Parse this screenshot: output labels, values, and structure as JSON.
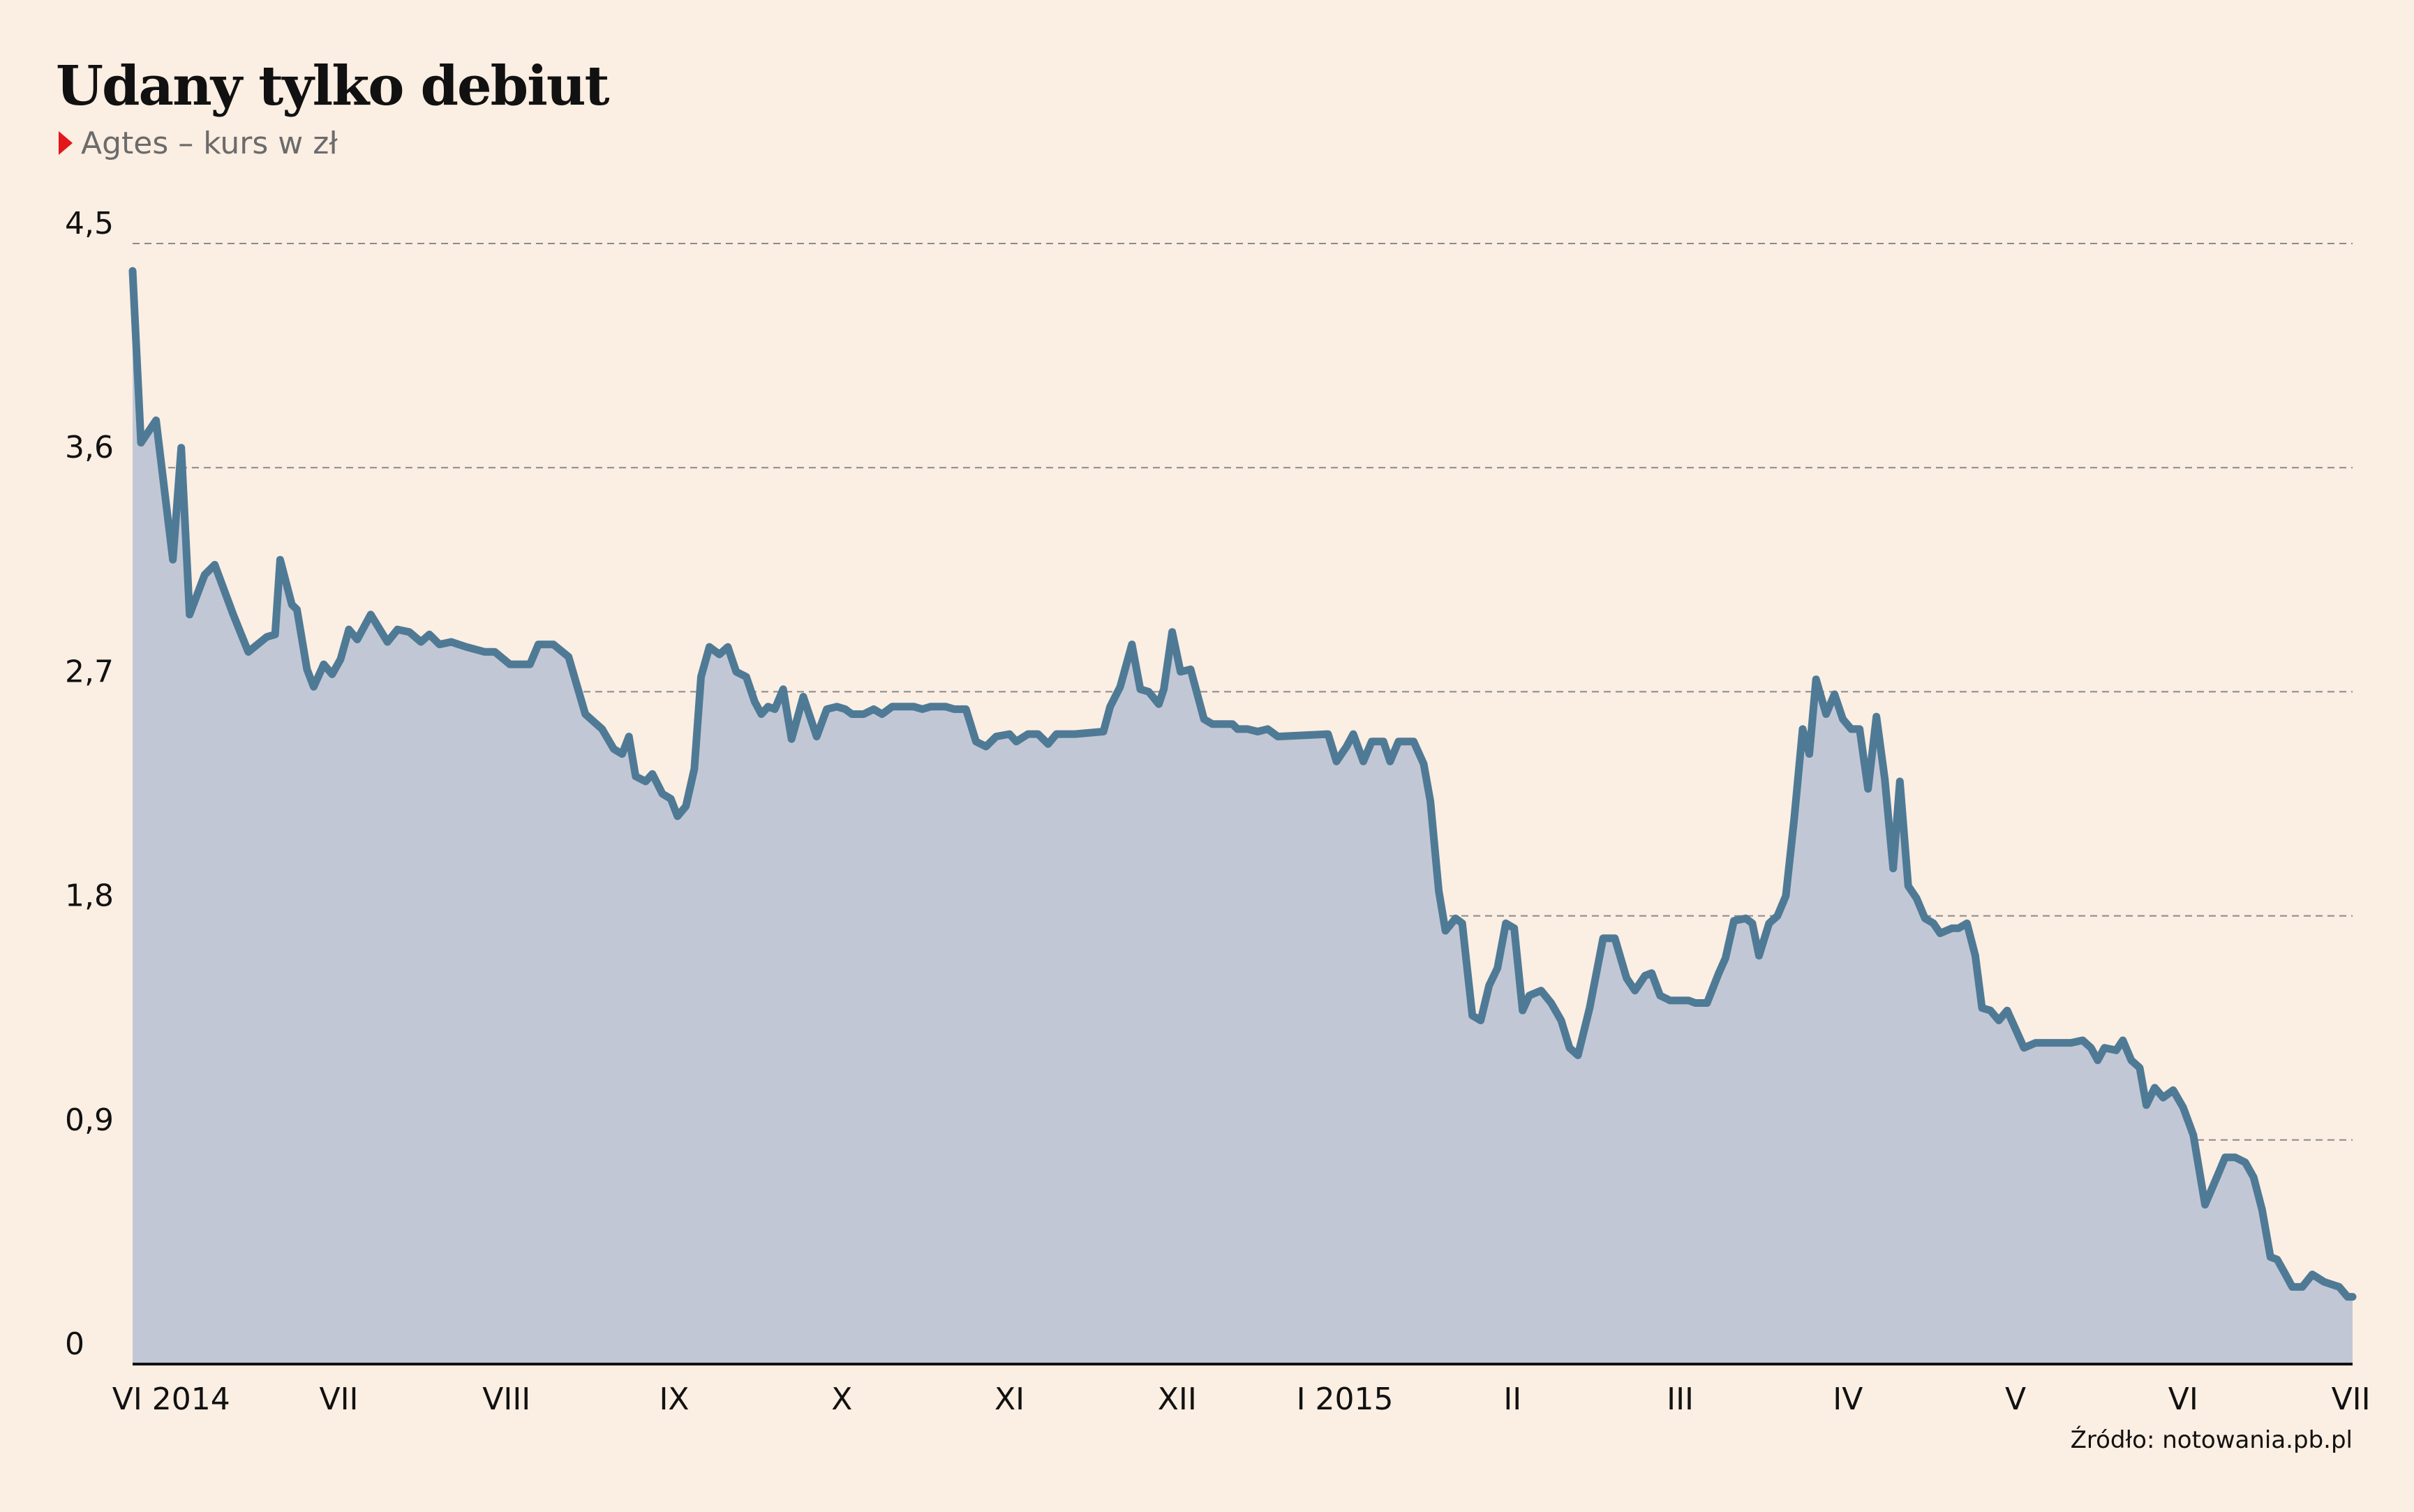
{
  "chart_data": {
    "type": "area",
    "title": "Udany tylko debiut",
    "source": "Źródło: notowania.pb.pl",
    "xlim": [
      -0.23,
      13.01
    ],
    "xticks": [
      {
        "value": 0,
        "label": "VI 2014"
      },
      {
        "value": 1,
        "label": "VII"
      },
      {
        "value": 2,
        "label": "VIII"
      },
      {
        "value": 3,
        "label": "IX"
      },
      {
        "value": 4,
        "label": "X"
      },
      {
        "value": 5,
        "label": "XI"
      },
      {
        "value": 6,
        "label": "XII"
      },
      {
        "value": 7,
        "label": "I 2015"
      },
      {
        "value": 8,
        "label": "II"
      },
      {
        "value": 9,
        "label": "III"
      },
      {
        "value": 10,
        "label": "IV"
      },
      {
        "value": 11,
        "label": "V"
      },
      {
        "value": 12,
        "label": "VI"
      },
      {
        "value": 13,
        "label": "VII"
      }
    ],
    "ylim": [
      0,
      4.5
    ],
    "yticks": [
      0,
      {
        "value": 0.9,
        "label": "0,9"
      },
      {
        "value": 1.8,
        "label": "1,8"
      },
      {
        "value": 2.7,
        "label": "2,7"
      },
      {
        "value": 3.6,
        "label": "3,6"
      },
      {
        "value": 4.5,
        "label": "4,5"
      }
    ],
    "grid": true,
    "legend_marker_color": "#e3161b",
    "area_color": "#c2c7d6",
    "x": [
      -0.23,
      -0.18,
      -0.09,
      0.01,
      0.06,
      0.11,
      0.2,
      0.26,
      0.37,
      0.46,
      0.57,
      0.62,
      0.65,
      0.72,
      0.75,
      0.81,
      0.85,
      0.91,
      0.96,
      1.01,
      1.06,
      1.11,
      1.19,
      1.29,
      1.35,
      1.42,
      1.49,
      1.54,
      1.6,
      1.67,
      1.76,
      1.87,
      1.93,
      2.02,
      2.14,
      2.19,
      2.28,
      2.37,
      2.47,
      2.57,
      2.64,
      2.69,
      2.73,
      2.77,
      2.83,
      2.87,
      2.93,
      2.98,
      3.02,
      3.07,
      3.12,
      3.16,
      3.21,
      3.27,
      3.32,
      3.37,
      3.43,
      3.48,
      3.52,
      3.56,
      3.6,
      3.65,
      3.7,
      3.77,
      3.85,
      3.91,
      3.97,
      4.02,
      4.06,
      4.13,
      4.19,
      4.24,
      4.3,
      4.43,
      4.48,
      4.53,
      4.62,
      4.67,
      4.74,
      4.8,
      4.86,
      4.92,
      5.0,
      5.04,
      5.11,
      5.17,
      5.23,
      5.28,
      5.39,
      5.56,
      5.6,
      5.66,
      5.73,
      5.78,
      5.83,
      5.89,
      5.92,
      5.97,
      6.02,
      6.08,
      6.16,
      6.21,
      6.33,
      6.36,
      6.42,
      6.48,
      6.54,
      6.6,
      6.9,
      6.95,
      7.01,
      7.05,
      7.11,
      7.16,
      7.23,
      7.27,
      7.32,
      7.41,
      7.47,
      7.51,
      7.56,
      7.6,
      7.66,
      7.7,
      7.76,
      7.81,
      7.86,
      7.91,
      7.96,
      8.01,
      8.06,
      8.1,
      8.17,
      8.23,
      8.29,
      8.34,
      8.39,
      8.46,
      8.54,
      8.61,
      8.68,
      8.73,
      8.79,
      8.83,
      8.88,
      8.94,
      9.05,
      9.09,
      9.16,
      9.23,
      9.27,
      9.32,
      9.39,
      9.43,
      9.47,
      9.53,
      9.58,
      9.63,
      9.68,
      9.73,
      9.77,
      9.81,
      9.87,
      9.92,
      9.97,
      10.02,
      10.07,
      10.12,
      10.17,
      10.22,
      10.27,
      10.31,
      10.36,
      10.41,
      10.46,
      10.51,
      10.55,
      10.62,
      10.66,
      10.71,
      10.76,
      10.8,
      10.85,
      10.9,
      10.95,
      11.01,
      11.05,
      11.12,
      11.33,
      11.4,
      11.45,
      11.49,
      11.53,
      11.6,
      11.64,
      11.69,
      11.74,
      11.78,
      11.83,
      11.88,
      11.94,
      12.0,
      12.06,
      12.13,
      12.2,
      12.25,
      12.31,
      12.37,
      12.42,
      12.47,
      12.52,
      12.56,
      12.61,
      12.65,
      12.71,
      12.77,
      12.84,
      12.93,
      12.98,
      13.01
    ],
    "series": [
      {
        "name": "Agtes – kurs w zł",
        "color": "#4f7a96",
        "values": [
          4.39,
          3.7,
          3.79,
          3.23,
          3.68,
          3.01,
          3.17,
          3.21,
          3.01,
          2.86,
          2.92,
          2.93,
          3.23,
          3.05,
          3.03,
          2.79,
          2.72,
          2.81,
          2.77,
          2.83,
          2.95,
          2.91,
          3.01,
          2.9,
          2.95,
          2.94,
          2.9,
          2.93,
          2.89,
          2.9,
          2.88,
          2.86,
          2.86,
          2.81,
          2.81,
          2.89,
          2.89,
          2.84,
          2.61,
          2.55,
          2.47,
          2.45,
          2.52,
          2.36,
          2.34,
          2.37,
          2.29,
          2.27,
          2.2,
          2.24,
          2.39,
          2.76,
          2.88,
          2.85,
          2.88,
          2.78,
          2.76,
          2.66,
          2.61,
          2.64,
          2.63,
          2.71,
          2.51,
          2.68,
          2.52,
          2.63,
          2.64,
          2.63,
          2.61,
          2.61,
          2.63,
          2.61,
          2.64,
          2.64,
          2.63,
          2.64,
          2.64,
          2.63,
          2.63,
          2.5,
          2.48,
          2.52,
          2.53,
          2.5,
          2.53,
          2.53,
          2.49,
          2.53,
          2.53,
          2.54,
          2.64,
          2.72,
          2.89,
          2.71,
          2.7,
          2.65,
          2.71,
          2.94,
          2.78,
          2.79,
          2.59,
          2.57,
          2.57,
          2.55,
          2.55,
          2.54,
          2.55,
          2.52,
          2.53,
          2.42,
          2.48,
          2.53,
          2.42,
          2.5,
          2.5,
          2.42,
          2.5,
          2.5,
          2.41,
          2.26,
          1.9,
          1.74,
          1.79,
          1.77,
          1.4,
          1.38,
          1.52,
          1.59,
          1.77,
          1.75,
          1.42,
          1.48,
          1.5,
          1.45,
          1.38,
          1.27,
          1.24,
          1.43,
          1.71,
          1.71,
          1.55,
          1.5,
          1.56,
          1.57,
          1.48,
          1.46,
          1.46,
          1.45,
          1.45,
          1.57,
          1.63,
          1.78,
          1.79,
          1.77,
          1.64,
          1.77,
          1.8,
          1.88,
          2.19,
          2.55,
          2.45,
          2.75,
          2.61,
          2.69,
          2.59,
          2.55,
          2.55,
          2.31,
          2.6,
          2.35,
          1.99,
          2.34,
          1.92,
          1.87,
          1.79,
          1.77,
          1.73,
          1.75,
          1.75,
          1.77,
          1.64,
          1.43,
          1.42,
          1.38,
          1.42,
          1.33,
          1.27,
          1.29,
          1.29,
          1.3,
          1.27,
          1.22,
          1.27,
          1.26,
          1.3,
          1.22,
          1.19,
          1.04,
          1.11,
          1.07,
          1.1,
          1.03,
          0.92,
          0.64,
          0.75,
          0.83,
          0.83,
          0.81,
          0.75,
          0.62,
          0.43,
          0.42,
          0.36,
          0.31,
          0.31,
          0.36,
          0.33,
          0.31,
          0.27,
          0.27
        ]
      }
    ]
  }
}
